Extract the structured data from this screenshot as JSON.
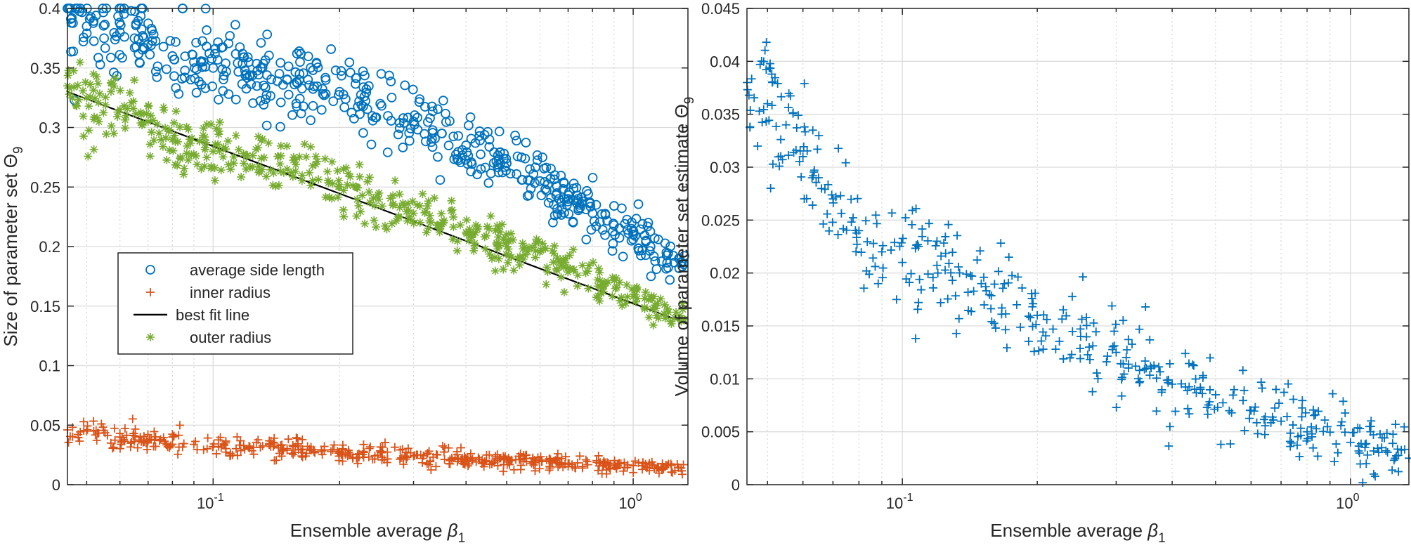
{
  "chart_data": [
    {
      "type": "scatter",
      "xscale": "log",
      "xlim": [
        0.045,
        1.35
      ],
      "ylim": [
        0,
        0.4
      ],
      "xlabel_main": "Ensemble average ",
      "xlabel_symbol": "β",
      "xlabel_sub": "1",
      "ylabel_main": "Size of parameter set Θ",
      "ylabel_sub": "9",
      "grid": true,
      "minor_grid_x": true,
      "legend_position": "lower-left",
      "x_ticks": [
        0.1,
        1.0
      ],
      "x_tick_labels": [
        {
          "base": "10",
          "exp": "-1"
        },
        {
          "base": "10",
          "exp": "0"
        }
      ],
      "y_ticks": [
        0,
        0.05,
        0.1,
        0.15,
        0.2,
        0.25,
        0.3,
        0.35,
        0.4
      ],
      "y_tick_labels": [
        "0",
        "0.05",
        "0.1",
        "0.15",
        "0.2",
        "0.25",
        "0.3",
        "0.35",
        "0.4"
      ],
      "series": [
        {
          "name": "average side length",
          "marker": "circle",
          "color": "#0072BD",
          "points": [
            [
              0.045,
              0.4
            ],
            [
              0.05,
              0.385
            ],
            [
              0.055,
              0.375
            ],
            [
              0.06,
              0.38
            ],
            [
              0.065,
              0.375
            ],
            [
              0.07,
              0.37
            ],
            [
              0.08,
              0.36
            ],
            [
              0.09,
              0.355
            ],
            [
              0.1,
              0.35
            ],
            [
              0.12,
              0.345
            ],
            [
              0.15,
              0.34
            ],
            [
              0.2,
              0.33
            ],
            [
              0.25,
              0.32
            ],
            [
              0.3,
              0.305
            ],
            [
              0.35,
              0.295
            ],
            [
              0.4,
              0.285
            ],
            [
              0.5,
              0.27
            ],
            [
              0.6,
              0.255
            ],
            [
              0.7,
              0.24
            ],
            [
              0.8,
              0.228
            ],
            [
              0.9,
              0.218
            ],
            [
              1.0,
              0.21
            ],
            [
              1.1,
              0.2
            ],
            [
              1.2,
              0.195
            ],
            [
              1.3,
              0.187
            ]
          ],
          "spread": 0.018
        },
        {
          "name": "inner radius",
          "marker": "plus",
          "color": "#D95319",
          "points": [
            [
              0.045,
              0.046
            ],
            [
              0.05,
              0.045
            ],
            [
              0.06,
              0.04
            ],
            [
              0.07,
              0.037
            ],
            [
              0.08,
              0.034
            ],
            [
              0.1,
              0.032
            ],
            [
              0.15,
              0.029
            ],
            [
              0.2,
              0.027
            ],
            [
              0.3,
              0.024
            ],
            [
              0.4,
              0.022
            ],
            [
              0.5,
              0.021
            ],
            [
              0.7,
              0.018
            ],
            [
              1.0,
              0.016
            ],
            [
              1.3,
              0.014
            ]
          ],
          "spread": 0.005
        },
        {
          "name": "best fit line",
          "marker": "line",
          "color": "#000000",
          "points": [
            [
              0.045,
              0.33
            ],
            [
              1.35,
              0.135
            ]
          ]
        },
        {
          "name": "outer radius",
          "marker": "asterisk",
          "color": "#77AC30",
          "points": [
            [
              0.045,
              0.335
            ],
            [
              0.05,
              0.325
            ],
            [
              0.06,
              0.315
            ],
            [
              0.07,
              0.305
            ],
            [
              0.08,
              0.29
            ],
            [
              0.1,
              0.28
            ],
            [
              0.15,
              0.265
            ],
            [
              0.2,
              0.25
            ],
            [
              0.3,
              0.228
            ],
            [
              0.4,
              0.212
            ],
            [
              0.5,
              0.2
            ],
            [
              0.7,
              0.182
            ],
            [
              1.0,
              0.158
            ],
            [
              1.3,
              0.138
            ]
          ],
          "spread": 0.013
        }
      ]
    },
    {
      "type": "scatter",
      "xscale": "log",
      "xlim": [
        0.045,
        1.35
      ],
      "ylim": [
        0,
        0.045
      ],
      "xlabel_main": "Ensemble average ",
      "xlabel_symbol": "β",
      "xlabel_sub": "1",
      "ylabel_main": "Volume of parameter set estimate Θ",
      "ylabel_sub": "9",
      "grid": true,
      "minor_grid_x": true,
      "x_ticks": [
        0.1,
        1.0
      ],
      "x_tick_labels": [
        {
          "base": "10",
          "exp": "-1"
        },
        {
          "base": "10",
          "exp": "0"
        }
      ],
      "y_ticks": [
        0,
        0.005,
        0.01,
        0.015,
        0.02,
        0.025,
        0.03,
        0.035,
        0.04,
        0.045
      ],
      "y_tick_labels": [
        "0",
        "0.005",
        "0.01",
        "0.015",
        "0.02",
        "0.025",
        "0.03",
        "0.035",
        "0.04",
        "0.045"
      ],
      "series": [
        {
          "marker": "plus",
          "color": "#0072BD",
          "points": [
            [
              0.045,
              0.038
            ],
            [
              0.05,
              0.036
            ],
            [
              0.055,
              0.034
            ],
            [
              0.06,
              0.031
            ],
            [
              0.065,
              0.029
            ],
            [
              0.07,
              0.027
            ],
            [
              0.08,
              0.024
            ],
            [
              0.09,
              0.022
            ],
            [
              0.1,
              0.021
            ],
            [
              0.12,
              0.02
            ],
            [
              0.15,
              0.019
            ],
            [
              0.18,
              0.017
            ],
            [
              0.2,
              0.016
            ],
            [
              0.25,
              0.014
            ],
            [
              0.3,
              0.0125
            ],
            [
              0.35,
              0.011
            ],
            [
              0.4,
              0.0095
            ],
            [
              0.5,
              0.0085
            ],
            [
              0.6,
              0.007
            ],
            [
              0.7,
              0.006
            ],
            [
              0.8,
              0.005
            ],
            [
              1.0,
              0.004
            ],
            [
              1.2,
              0.0032
            ],
            [
              1.35,
              0.0025
            ]
          ],
          "spread": 0.0028
        }
      ]
    }
  ]
}
